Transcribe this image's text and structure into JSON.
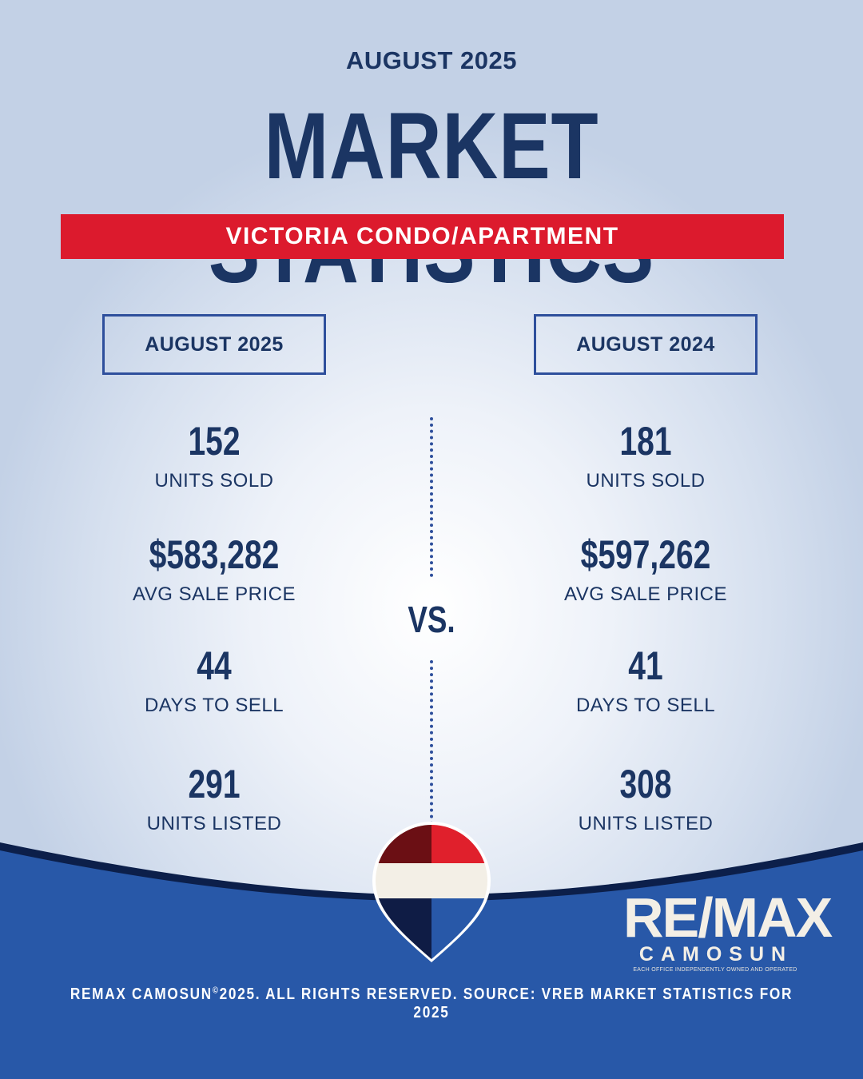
{
  "header": {
    "month": "AUGUST 2025",
    "title": "MARKET STATISTICS",
    "category": "VICTORIA CONDO/APARTMENT"
  },
  "columns": [
    {
      "period": "AUGUST 2025",
      "stats": [
        {
          "value": "152",
          "label": "UNITS SOLD"
        },
        {
          "value": "$583,282",
          "label": "AVG SALE PRICE"
        },
        {
          "value": "44",
          "label": "DAYS TO SELL"
        },
        {
          "value": "291",
          "label": "UNITS LISTED"
        }
      ]
    },
    {
      "period": "AUGUST 2024",
      "stats": [
        {
          "value": "181",
          "label": "UNITS SOLD"
        },
        {
          "value": "$597,262",
          "label": "AVG SALE PRICE"
        },
        {
          "value": "41",
          "label": "DAYS TO SELL"
        },
        {
          "value": "308",
          "label": "UNITS LISTED"
        }
      ]
    }
  ],
  "vs_label": "VS.",
  "logo": {
    "wordmark": "RE/MAX",
    "office": "CAMOSUN",
    "tagline": "EACH OFFICE INDEPENDENTLY OWNED AND OPERATED"
  },
  "footer": {
    "brand": "REMAX CAMOSUN",
    "mark": "©",
    "rest": "2025. ALL RIGHTS RESERVED. SOURCE: VREB MARKET STATISTICS FOR 2025"
  },
  "colors": {
    "navy": "#1b3563",
    "red": "#dc1a2d",
    "blue": "#2858a8",
    "cream": "#f3efe6"
  }
}
